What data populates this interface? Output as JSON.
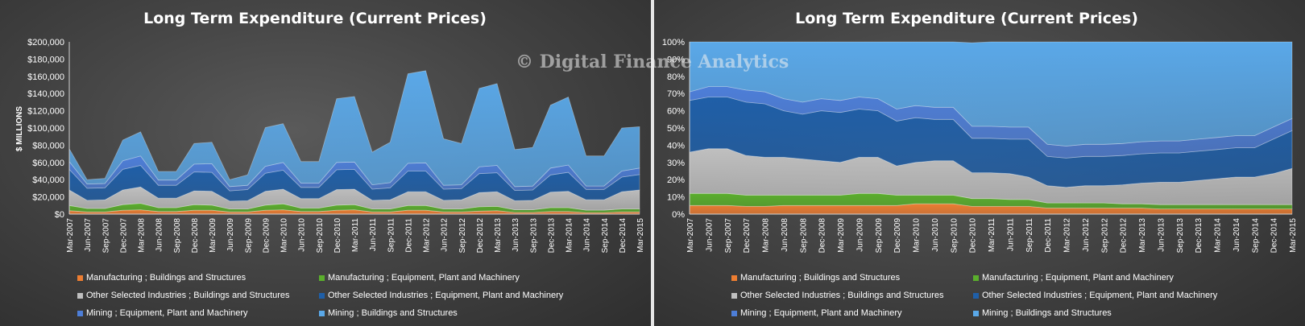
{
  "watermark": "© Digital Finance Analytics",
  "colors": {
    "manufacturing_buildings": "#ed7d31",
    "manufacturing_equipment": "#5aae2c",
    "other_buildings": "#bfbfbf",
    "other_equipment": "#1f5fa8",
    "mining_equipment": "#4d7ed8",
    "mining_buildings": "#5aa8e8"
  },
  "chart_data": [
    {
      "type": "area",
      "stacked": true,
      "title": "Long Term Expenditure  (Current Prices)",
      "ylabel": "$ MILLIONS",
      "ylim": [
        0,
        200000
      ],
      "yticks": [
        "$0",
        "$20,000",
        "$40,000",
        "$60,000",
        "$80,000",
        "$100,000",
        "$120,000",
        "$140,000",
        "$160,000",
        "$180,000",
        "$200,000"
      ],
      "x": [
        "Mar-2007",
        "Jun-2007",
        "Sep-2007",
        "Dec-2007",
        "Mar-2008",
        "Jun-2008",
        "Sep-2008",
        "Dec-2008",
        "Mar-2009",
        "Jun-2009",
        "Sep-2009",
        "Dec-2009",
        "Mar-2010",
        "Jun-2010",
        "Sep-2010",
        "Dec-2010",
        "Mar-2011",
        "Jun-2011",
        "Sep-2011",
        "Dec-2011",
        "Mar-2012",
        "Jun-2012",
        "Sep-2012",
        "Dec-2012",
        "Mar-2013",
        "Jun-2013",
        "Sep-2013",
        "Dec-2013",
        "Mar-2014",
        "Jun-2014",
        "Sep-2014",
        "Dec-2014",
        "Mar-2015"
      ],
      "legend_position": "bottom",
      "series": [
        {
          "name": "Manufacturing ;  Buildings and Structures",
          "values": [
            4000,
            2500,
            2500,
            4500,
            5000,
            3000,
            3000,
            4500,
            4500,
            2500,
            2500,
            4500,
            5000,
            3000,
            3000,
            4500,
            5000,
            2500,
            2500,
            4500,
            4500,
            2500,
            2500,
            3500,
            4000,
            2000,
            2000,
            3000,
            3000,
            1800,
            1800,
            2500,
            2500
          ]
        },
        {
          "name": "Manufacturing ;  Equipment, Plant and Machinery",
          "values": [
            6000,
            4000,
            4000,
            6500,
            7500,
            4500,
            4500,
            6500,
            6000,
            3500,
            3500,
            6000,
            7000,
            4000,
            4000,
            6000,
            6000,
            3500,
            3500,
            5500,
            5500,
            3500,
            3500,
            5000,
            5000,
            3000,
            3000,
            4500,
            4500,
            2800,
            2800,
            3500,
            3500
          ]
        },
        {
          "name": "Other Selected Industries ;  Buildings and Structures",
          "values": [
            18000,
            9500,
            10000,
            17000,
            19000,
            11000,
            11000,
            16000,
            16000,
            9000,
            9500,
            16000,
            17000,
            11000,
            11000,
            18000,
            18000,
            10000,
            10500,
            16000,
            16000,
            10000,
            10500,
            16500,
            17000,
            10500,
            11000,
            18000,
            19000,
            12000,
            12000,
            20000,
            22000
          ]
        },
        {
          "name": "Other Selected Industries ;  Equipment, Plant and Machinery",
          "values": [
            24000,
            14000,
            14000,
            24000,
            25000,
            15000,
            15000,
            22000,
            22000,
            12000,
            13000,
            21000,
            22000,
            13000,
            13000,
            23000,
            23000,
            13000,
            14000,
            24000,
            24000,
            13000,
            13000,
            22000,
            22000,
            12000,
            12000,
            20000,
            22000,
            12000,
            12000,
            17000,
            18000
          ]
        },
        {
          "name": "Mining ;  Equipment, Plant and Machinery",
          "values": [
            9000,
            5000,
            5000,
            10000,
            11000,
            6000,
            6000,
            9000,
            10000,
            5000,
            5000,
            8000,
            9000,
            5000,
            5000,
            8500,
            8500,
            5000,
            6000,
            9000,
            9500,
            4500,
            4500,
            8000,
            8500,
            4500,
            4500,
            8000,
            8500,
            4000,
            4000,
            7000,
            7500
          ]
        },
        {
          "name": "Mining ;  Buildings and Structures",
          "values": [
            15000,
            5000,
            6000,
            24000,
            28000,
            10000,
            10000,
            24000,
            25000,
            8000,
            12000,
            45000,
            45000,
            25000,
            25000,
            74000,
            76000,
            38000,
            47000,
            104000,
            107000,
            54000,
            48000,
            91000,
            95000,
            43000,
            45000,
            73000,
            79000,
            35000,
            35000,
            50000,
            48000
          ]
        }
      ]
    },
    {
      "type": "area",
      "stacked": true,
      "normalized": true,
      "title": "Long Term Expenditure  (Current Prices)",
      "ylim": [
        0,
        100
      ],
      "yticks": [
        "0%",
        "10%",
        "20%",
        "30%",
        "40%",
        "50%",
        "60%",
        "70%",
        "80%",
        "90%",
        "100%"
      ],
      "x": [
        "Mar-2007",
        "Jun-2007",
        "Sep-2007",
        "Dec-2007",
        "Mar-2008",
        "Jun-2008",
        "Sep-2008",
        "Dec-2008",
        "Mar-2009",
        "Jun-2009",
        "Sep-2009",
        "Dec-2009",
        "Mar-2010",
        "Jun-2010",
        "Sep-2010",
        "Dec-2010",
        "Mar-2011",
        "Jun-2011",
        "Sep-2011",
        "Dec-2011",
        "Mar-2012",
        "Jun-2012",
        "Sep-2012",
        "Dec-2012",
        "Mar-2013",
        "Jun-2013",
        "Sep-2013",
        "Dec-2013",
        "Mar-2014",
        "Jun-2014",
        "Sep-2014",
        "Dec-2014",
        "Mar-2015"
      ],
      "legend_position": "bottom",
      "series": [
        {
          "name": "Manufacturing ;  Buildings and Structures",
          "values": [
            5,
            5,
            5,
            4.5,
            4.5,
            5,
            5,
            5,
            5,
            5,
            5,
            5,
            6,
            6,
            6,
            4.5,
            4.5,
            4.5,
            4.5,
            3.5,
            3.5,
            3.5,
            3.5,
            3.5,
            3.5,
            3,
            3,
            3,
            3,
            3,
            3,
            3,
            3
          ]
        },
        {
          "name": "Manufacturing ;  Equipment, Plant and Machinery",
          "values": [
            7,
            7,
            7,
            6.5,
            6.5,
            6,
            6,
            6,
            6,
            7,
            7,
            6,
            5,
            5,
            5,
            4.5,
            4.5,
            4,
            4,
            3,
            3,
            3,
            3,
            2.5,
            2.5,
            2.5,
            2.5,
            2.5,
            2.5,
            2.5,
            2.5,
            2.5,
            2.5
          ]
        },
        {
          "name": "Other Selected Industries ;  Buildings and Structures",
          "values": [
            24,
            26,
            26,
            23,
            22,
            22,
            21,
            20,
            19,
            21,
            21,
            17,
            19,
            20,
            20,
            15,
            15,
            15,
            13,
            10,
            9,
            10,
            10,
            11,
            12,
            13,
            13,
            14,
            15,
            16,
            16,
            18,
            21
          ]
        },
        {
          "name": "Other Selected Industries ;  Equipment, Plant and Machinery",
          "values": [
            30,
            30,
            30,
            31,
            31,
            27,
            26,
            29,
            29,
            28,
            27,
            26,
            26,
            24,
            24,
            20,
            20,
            20,
            22,
            17,
            17,
            17,
            17,
            17,
            17,
            17,
            17,
            17,
            17,
            17,
            17,
            20,
            22
          ]
        },
        {
          "name": "Mining ;  Equipment, Plant and Machinery",
          "values": [
            5,
            6,
            6,
            7,
            7,
            7,
            7,
            7,
            7,
            7,
            7,
            7,
            7,
            7,
            7,
            7,
            7,
            7,
            7,
            7,
            7,
            7,
            7,
            7,
            7,
            7,
            7,
            7,
            7,
            7,
            7,
            7,
            7
          ]
        },
        {
          "name": "Mining ;  Buildings and Structures",
          "values": [
            29,
            26,
            26,
            28,
            29,
            33,
            35,
            33,
            34,
            32,
            33,
            39,
            37,
            38,
            38,
            48.5,
            49,
            49.5,
            49.5,
            59.5,
            60.5,
            59.5,
            59.5,
            59,
            58,
            57.5,
            57.5,
            56.5,
            55.5,
            54.5,
            54.5,
            49.5,
            44.5
          ]
        }
      ]
    }
  ]
}
